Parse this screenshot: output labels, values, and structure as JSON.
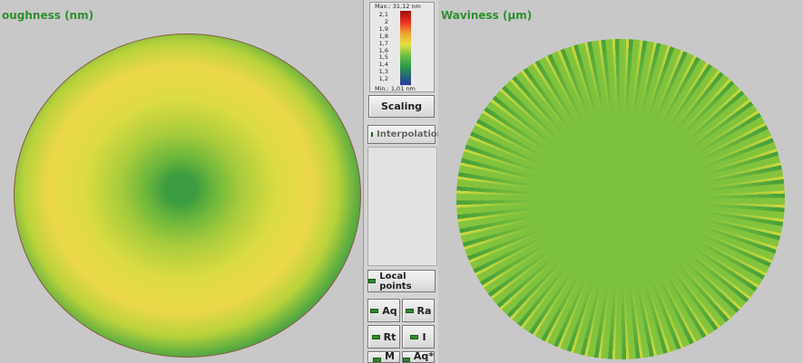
{
  "left_panel": {
    "title": "oughness (nm)"
  },
  "right_panel": {
    "title": "Waviness (µm)"
  },
  "color_scale": {
    "max": "Max.: 31,12 nm",
    "labels": [
      "2,1",
      "2",
      "1,9",
      "1,8",
      "1,7",
      "1,6",
      "1,5",
      "1,4",
      "1,3",
      "1,2"
    ],
    "min": "Min.: 1,01 nm"
  },
  "controls": {
    "scaling": "Scaling",
    "interpolation": "Interpolation",
    "local_points": "Local points",
    "parameters": [
      "Aq",
      "Ra",
      "Rt",
      "I",
      "M",
      "Aq*"
    ]
  }
}
